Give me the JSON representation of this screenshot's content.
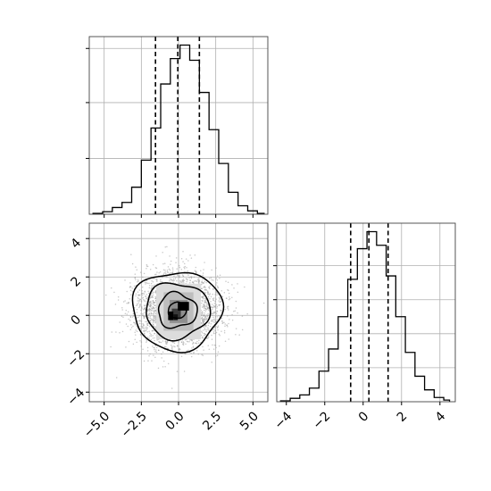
{
  "chart_data": {
    "type": "corner",
    "grid": true,
    "colors": {
      "line": "#000000",
      "grid": "#b0b0b0",
      "scatter": "#9a9a9a"
    },
    "panels": [
      {
        "id": "hist_x",
        "type": "histogram",
        "xlim": [
          -6.0,
          6.0
        ],
        "ylim": [
          0,
          1.05
        ],
        "xticks": [
          -5.0,
          -2.5,
          0.0,
          2.5,
          5.0
        ],
        "yticks": [
          0.33,
          0.66,
          0.98
        ],
        "tick_labels_visible": false,
        "bin_edges": [
          -5.75,
          -5.1,
          -4.45,
          -3.8,
          -3.15,
          -2.5,
          -1.85,
          -1.2,
          -0.55,
          0.1,
          0.75,
          1.4,
          2.05,
          2.7,
          3.35,
          4.0,
          4.65,
          5.3,
          5.75
        ],
        "counts": [
          0.005,
          0.015,
          0.04,
          0.07,
          0.16,
          0.32,
          0.51,
          0.77,
          0.92,
          1.0,
          0.91,
          0.72,
          0.5,
          0.3,
          0.13,
          0.05,
          0.02,
          0.005
        ],
        "quantiles": [
          -1.55,
          -0.05,
          1.4
        ]
      },
      {
        "id": "joint_xy",
        "type": "2d-histogram",
        "xlim": [
          -6.0,
          6.0
        ],
        "ylim": [
          -4.5,
          4.8
        ],
        "xticks": [
          -5.0,
          -2.5,
          0.0,
          2.5,
          5.0
        ],
        "xtick_labels": [
          "−5.0",
          "−2.5",
          "0.0",
          "2.5",
          "5.0"
        ],
        "yticks": [
          -4,
          -2,
          0,
          2,
          4
        ],
        "ytick_labels": [
          "−4",
          "−2",
          "0",
          "2",
          "4"
        ],
        "center": [
          -0.1,
          0.25
        ],
        "contour_levels": [
          {
            "rx": 3.0,
            "ry": 2.05,
            "wobble": 0.06
          },
          {
            "rx": 2.15,
            "ry": 1.45,
            "wobble": 0.07
          },
          {
            "rx": 1.3,
            "ry": 0.9,
            "wobble": 0.09
          },
          {
            "rx": 0.6,
            "ry": 0.42,
            "wobble": 0.05
          }
        ],
        "density_cells": [
          {
            "x": -1.5,
            "y": -1.25,
            "w": 3.0,
            "h": 2.9,
            "shade": "#dcdcdc"
          },
          {
            "x": -1.0,
            "y": -0.8,
            "w": 2.0,
            "h": 2.0,
            "shade": "#bdbdbd"
          },
          {
            "x": -0.6,
            "y": -0.4,
            "w": 1.2,
            "h": 1.2,
            "shade": "#8e8e8e"
          },
          {
            "x": -0.45,
            "y": -0.15,
            "w": 0.6,
            "h": 0.5,
            "shade": "#3a3a3a"
          },
          {
            "x": -0.7,
            "y": -0.25,
            "w": 0.35,
            "h": 0.45,
            "shade": "#000000"
          },
          {
            "x": -0.05,
            "y": 0.25,
            "w": 0.75,
            "h": 0.45,
            "shade": "#000000"
          },
          {
            "x": -0.35,
            "y": -0.25,
            "w": 0.3,
            "h": 0.3,
            "shade": "#111111"
          }
        ]
      },
      {
        "id": "hist_y",
        "type": "histogram",
        "xlim": [
          -4.5,
          4.8
        ],
        "ylim": [
          0,
          1.05
        ],
        "xticks": [
          -4,
          -2,
          0,
          2,
          4
        ],
        "xtick_labels": [
          "−4",
          "−2",
          "0",
          "2",
          "4"
        ],
        "yticks": [
          0.2,
          0.4,
          0.6,
          0.8
        ],
        "bin_edges": [
          -4.3,
          -3.8,
          -3.3,
          -2.8,
          -2.3,
          -1.8,
          -1.3,
          -0.8,
          -0.3,
          0.2,
          0.7,
          1.2,
          1.7,
          2.2,
          2.7,
          3.2,
          3.7,
          4.2,
          4.5
        ],
        "counts": [
          0.005,
          0.02,
          0.04,
          0.08,
          0.18,
          0.31,
          0.5,
          0.72,
          0.9,
          1.0,
          0.92,
          0.74,
          0.5,
          0.29,
          0.15,
          0.07,
          0.025,
          0.01
        ],
        "quantiles": [
          -0.65,
          0.3,
          1.3
        ]
      }
    ]
  }
}
